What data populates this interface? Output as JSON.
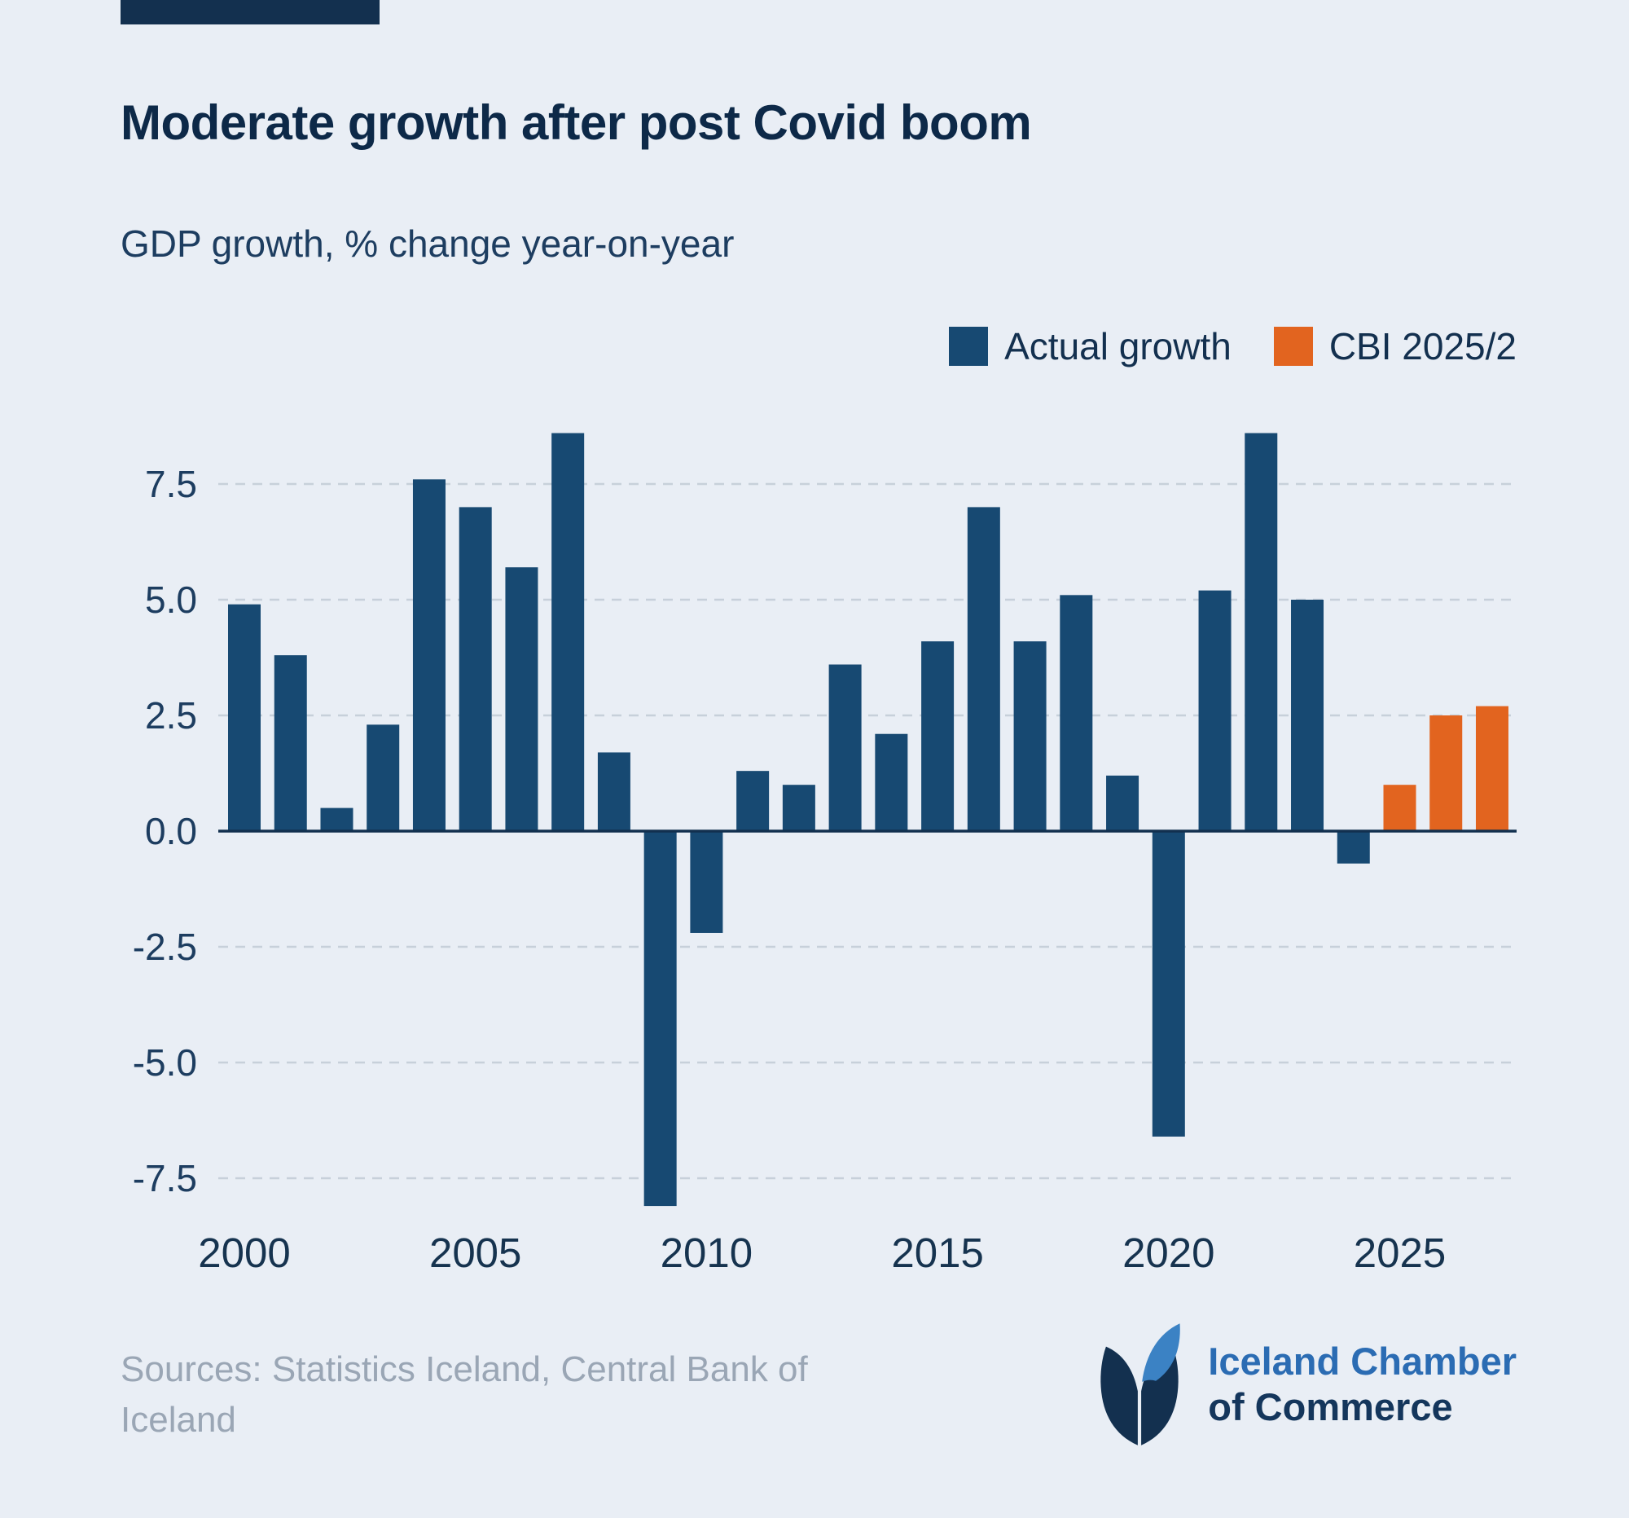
{
  "header": {
    "title": "Moderate growth after post Covid boom",
    "subtitle": "GDP growth, % change year-on-year"
  },
  "legend": {
    "items": [
      {
        "label": "Actual growth",
        "color": "#174972"
      },
      {
        "label": "CBI 2025/2",
        "color": "#e2641f"
      }
    ]
  },
  "colors": {
    "background": "#e9eef5",
    "brand_navy": "#13304f",
    "bar_navy": "#174972",
    "bar_orange": "#e2641f"
  },
  "chart_data": {
    "type": "bar",
    "title": "Moderate growth after post Covid boom",
    "subtitle": "GDP growth, % change year-on-year",
    "xlabel": "",
    "ylabel": "GDP growth, % change year-on-year",
    "x_start_year": 2000,
    "series": [
      {
        "name": "Actual growth",
        "color": "#174972",
        "start_year": 2000,
        "values": [
          4.9,
          3.8,
          0.5,
          2.3,
          7.6,
          7.0,
          5.7,
          8.6,
          1.7,
          -8.1,
          -2.2,
          1.3,
          1.0,
          3.6,
          2.1,
          4.1,
          7.0,
          4.1,
          5.1,
          1.2,
          -6.6,
          5.2,
          8.6,
          5.0,
          -0.7
        ]
      },
      {
        "name": "CBI 2025/2",
        "color": "#e2641f",
        "start_year": 2025,
        "values": [
          1.0,
          2.5,
          2.7
        ]
      }
    ],
    "yticks": [
      7.5,
      5.0,
      2.5,
      0.0,
      -2.5,
      -5.0,
      -7.5
    ],
    "xticks": [
      2000,
      2005,
      2010,
      2015,
      2020,
      2025
    ],
    "ylim": [
      -8.8,
      9.3
    ],
    "grid": "horizontal-dashed",
    "legend_position": "top-right"
  },
  "footer": {
    "sources": "Sources: Statistics Iceland, Central Bank of Iceland",
    "logo_line1": "Iceland Chamber",
    "logo_line2": "of Commerce"
  }
}
